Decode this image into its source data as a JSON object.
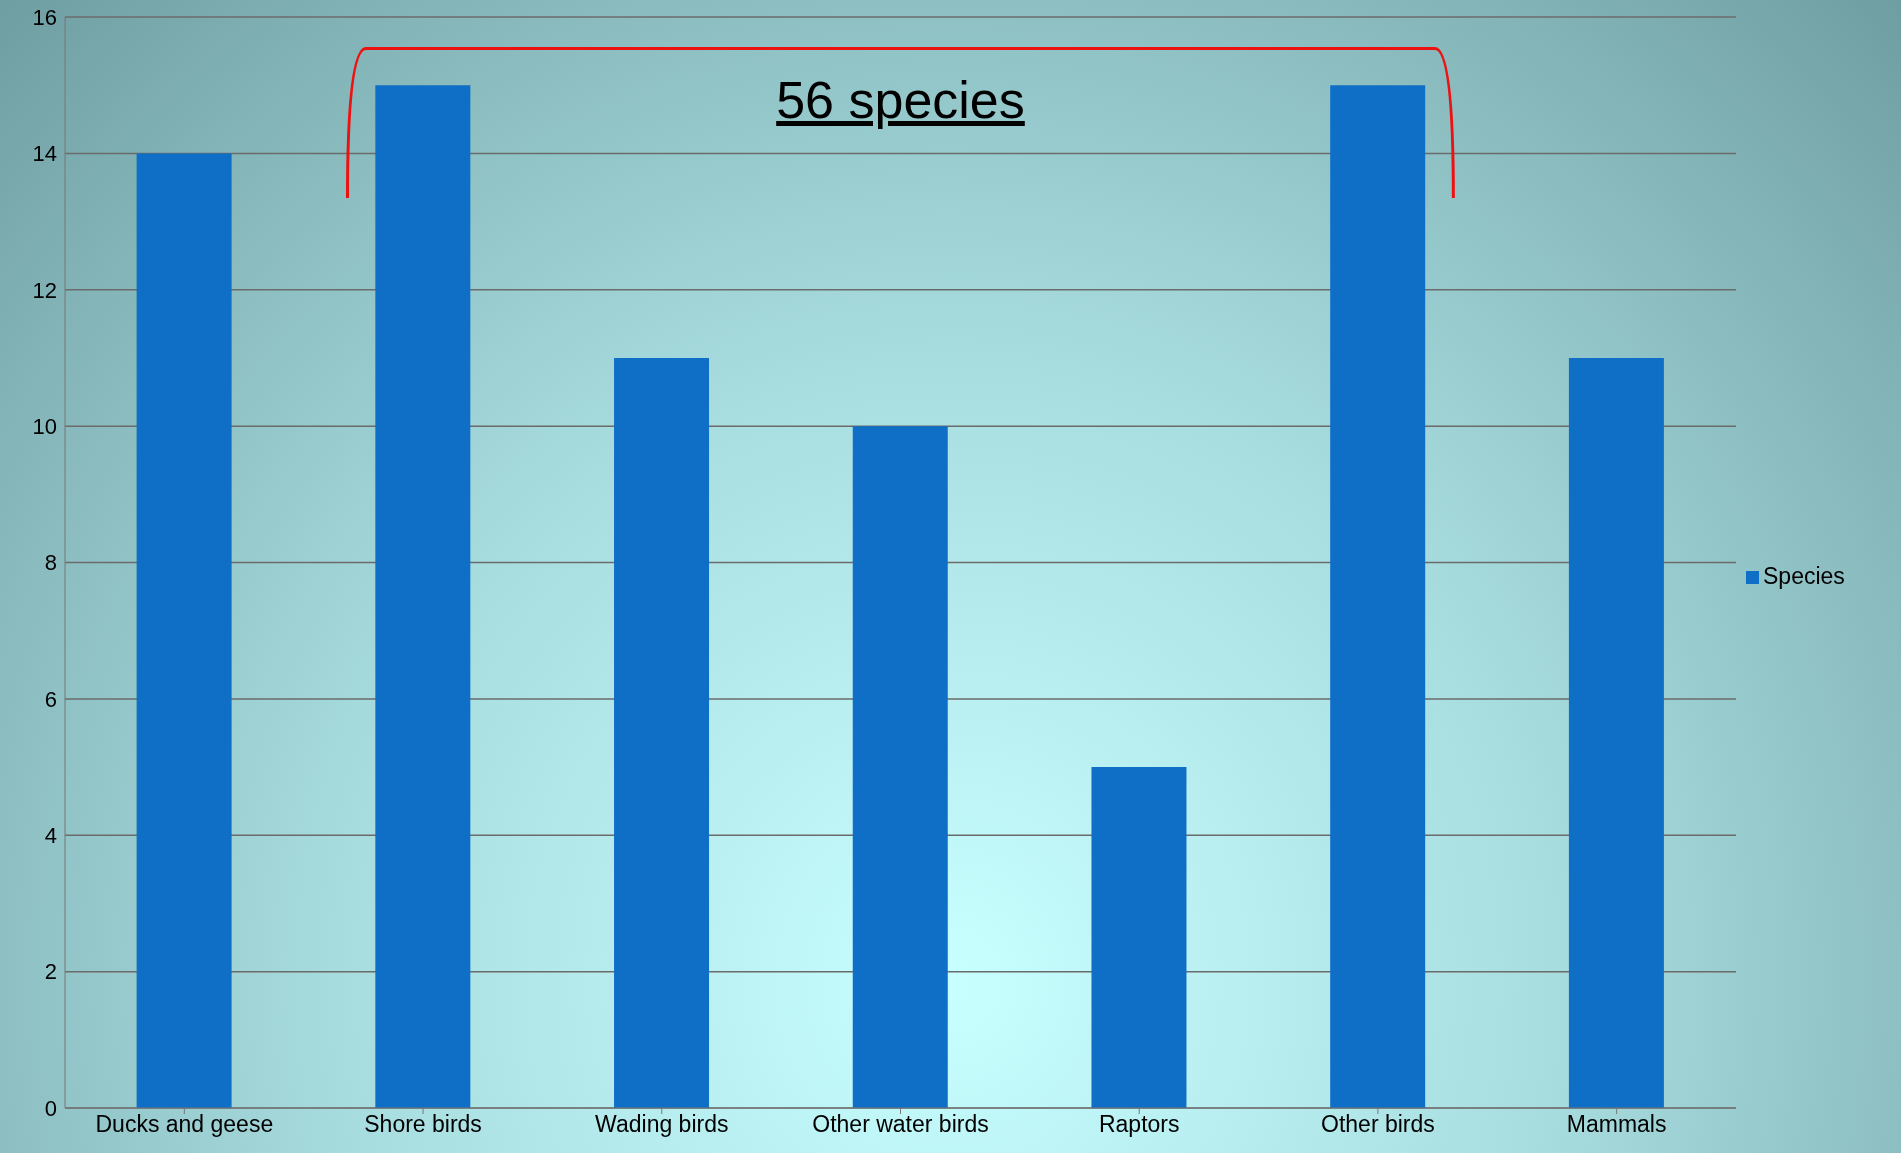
{
  "chart_data": {
    "type": "bar",
    "categories": [
      "Ducks and geese",
      "Shore birds",
      "Wading birds",
      "Other water birds",
      "Raptors",
      "Other birds",
      "Mammals"
    ],
    "series": [
      {
        "name": "Species",
        "color": "#0f6fc6",
        "values": [
          14,
          15,
          11,
          10,
          5,
          15,
          11
        ]
      }
    ],
    "ylim": [
      0,
      16
    ],
    "yticks": [
      0,
      2,
      4,
      6,
      8,
      10,
      12,
      14,
      16
    ],
    "grid": "y",
    "legend": "right",
    "annotations": [
      "56 species"
    ]
  }
}
